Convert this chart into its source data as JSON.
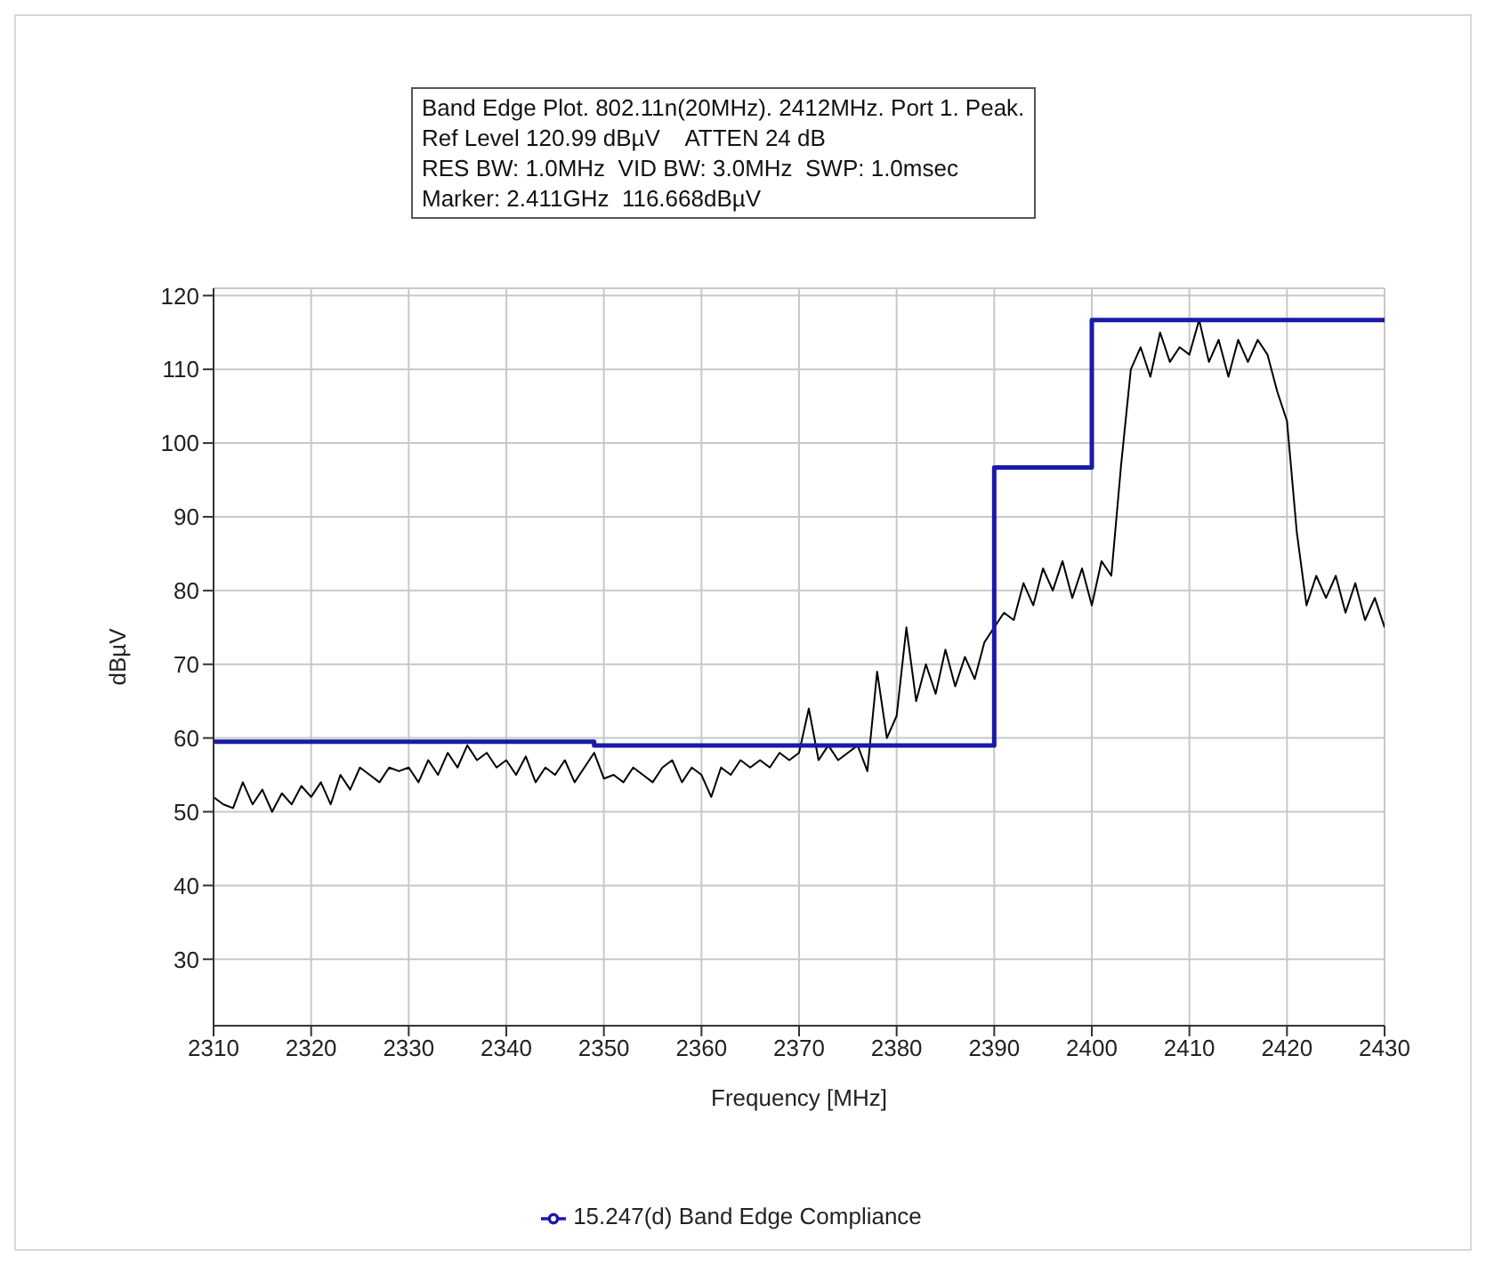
{
  "chart_data": {
    "type": "line",
    "title": "Band Edge Plot. 802.11n(20MHz). 2412MHz. Port 1. Peak.",
    "annotations": [
      "Ref Level 120.99 dBµV    ATTEN 24 dB",
      "RES BW: 1.0MHz  VID BW: 3.0MHz  SWP: 1.0msec",
      "Marker: 2.411GHz  116.668dBµV"
    ],
    "xlabel": "Frequency [MHz]",
    "ylabel": "dBµV",
    "xlim": [
      2310,
      2430
    ],
    "xticks": [
      2310,
      2320,
      2330,
      2340,
      2350,
      2360,
      2370,
      2380,
      2390,
      2400,
      2410,
      2420,
      2430
    ],
    "ylim": [
      21,
      121
    ],
    "yticks": [
      30,
      40,
      50,
      60,
      70,
      80,
      90,
      100,
      110,
      120
    ],
    "grid": true,
    "legend": "bottom",
    "marker": "none",
    "line_style": "solid",
    "series": [
      {
        "color": "#000000",
        "x": [
          2310,
          2311,
          2312,
          2313,
          2314,
          2315,
          2316,
          2317,
          2318,
          2319,
          2320,
          2321,
          2322,
          2323,
          2324,
          2325,
          2326,
          2327,
          2328,
          2329,
          2330,
          2331,
          2332,
          2333,
          2334,
          2335,
          2336,
          2337,
          2338,
          2339,
          2340,
          2341,
          2342,
          2343,
          2344,
          2345,
          2346,
          2347,
          2348,
          2349,
          2350,
          2351,
          2352,
          2353,
          2354,
          2355,
          2356,
          2357,
          2358,
          2359,
          2360,
          2361,
          2362,
          2363,
          2364,
          2365,
          2366,
          2367,
          2368,
          2369,
          2370,
          2371,
          2372,
          2373,
          2374,
          2375,
          2376,
          2377,
          2378,
          2379,
          2380,
          2381,
          2382,
          2383,
          2384,
          2385,
          2386,
          2387,
          2388,
          2389,
          2390,
          2391,
          2392,
          2393,
          2394,
          2395,
          2396,
          2397,
          2398,
          2399,
          2400,
          2401,
          2402,
          2403,
          2404,
          2405,
          2406,
          2407,
          2408,
          2409,
          2410,
          2411,
          2412,
          2413,
          2414,
          2415,
          2416,
          2417,
          2418,
          2419,
          2420,
          2421,
          2422,
          2423,
          2424,
          2425,
          2426,
          2427,
          2428,
          2429,
          2430
        ],
        "values": [
          52,
          51,
          50.5,
          54,
          51,
          53,
          50,
          52.5,
          51,
          53.5,
          52,
          54,
          51,
          55,
          53,
          56,
          55,
          54,
          56,
          55.5,
          56,
          54,
          57,
          55,
          58,
          56,
          59,
          57,
          58,
          56,
          57,
          55,
          57.5,
          54,
          56,
          55,
          57,
          54,
          56,
          58,
          54.5,
          55,
          54,
          56,
          55,
          54,
          56,
          57,
          54,
          56,
          55,
          52,
          56,
          55,
          57,
          56,
          57,
          56,
          58,
          57,
          58,
          64,
          57,
          59,
          57,
          58,
          59,
          55.5,
          69,
          60,
          63,
          75,
          65,
          70,
          66,
          72,
          67,
          71,
          68,
          73,
          75,
          77,
          76,
          81,
          78,
          83,
          80,
          84,
          79,
          83,
          78,
          84,
          82,
          97,
          110,
          113,
          109,
          115,
          111,
          113,
          112,
          116.7,
          111,
          114,
          109,
          114,
          111,
          114,
          112,
          107,
          103,
          88,
          78,
          82,
          79,
          82,
          77,
          81,
          76,
          79,
          75
        ]
      },
      {
        "type": "step",
        "name": "15.247(d) Band Edge Compliance",
        "color": "#1a1aa8",
        "x": [
          2310,
          2349,
          2390,
          2400,
          2430
        ],
        "values": [
          59.5,
          59,
          96.7,
          116.7,
          116.7
        ]
      }
    ]
  }
}
